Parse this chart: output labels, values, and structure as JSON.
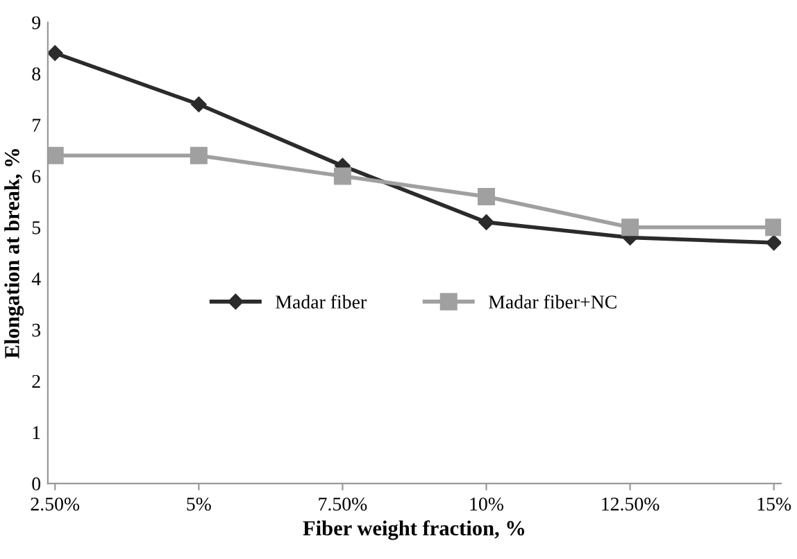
{
  "chart_data": {
    "type": "line",
    "xlabel": "Fiber weight fraction, %",
    "ylabel": "Elongation at break, %",
    "categories": [
      "2.50%",
      "5%",
      "7.50%",
      "10%",
      "12.50%",
      "15%"
    ],
    "series": [
      {
        "name": "Madar fiber",
        "color": "#2b2b2b",
        "marker": "diamond",
        "values": [
          8.4,
          7.4,
          6.2,
          5.1,
          4.8,
          4.7
        ]
      },
      {
        "name": "Madar fiber+NC",
        "color": "#a0a0a0",
        "marker": "square",
        "values": [
          6.4,
          6.4,
          6.0,
          5.6,
          5.0,
          5.0
        ]
      }
    ],
    "ylim": [
      0,
      9
    ],
    "yticks": [
      0,
      1,
      2,
      3,
      4,
      5,
      6,
      7,
      8,
      9
    ],
    "grid": false,
    "legend": "center"
  }
}
